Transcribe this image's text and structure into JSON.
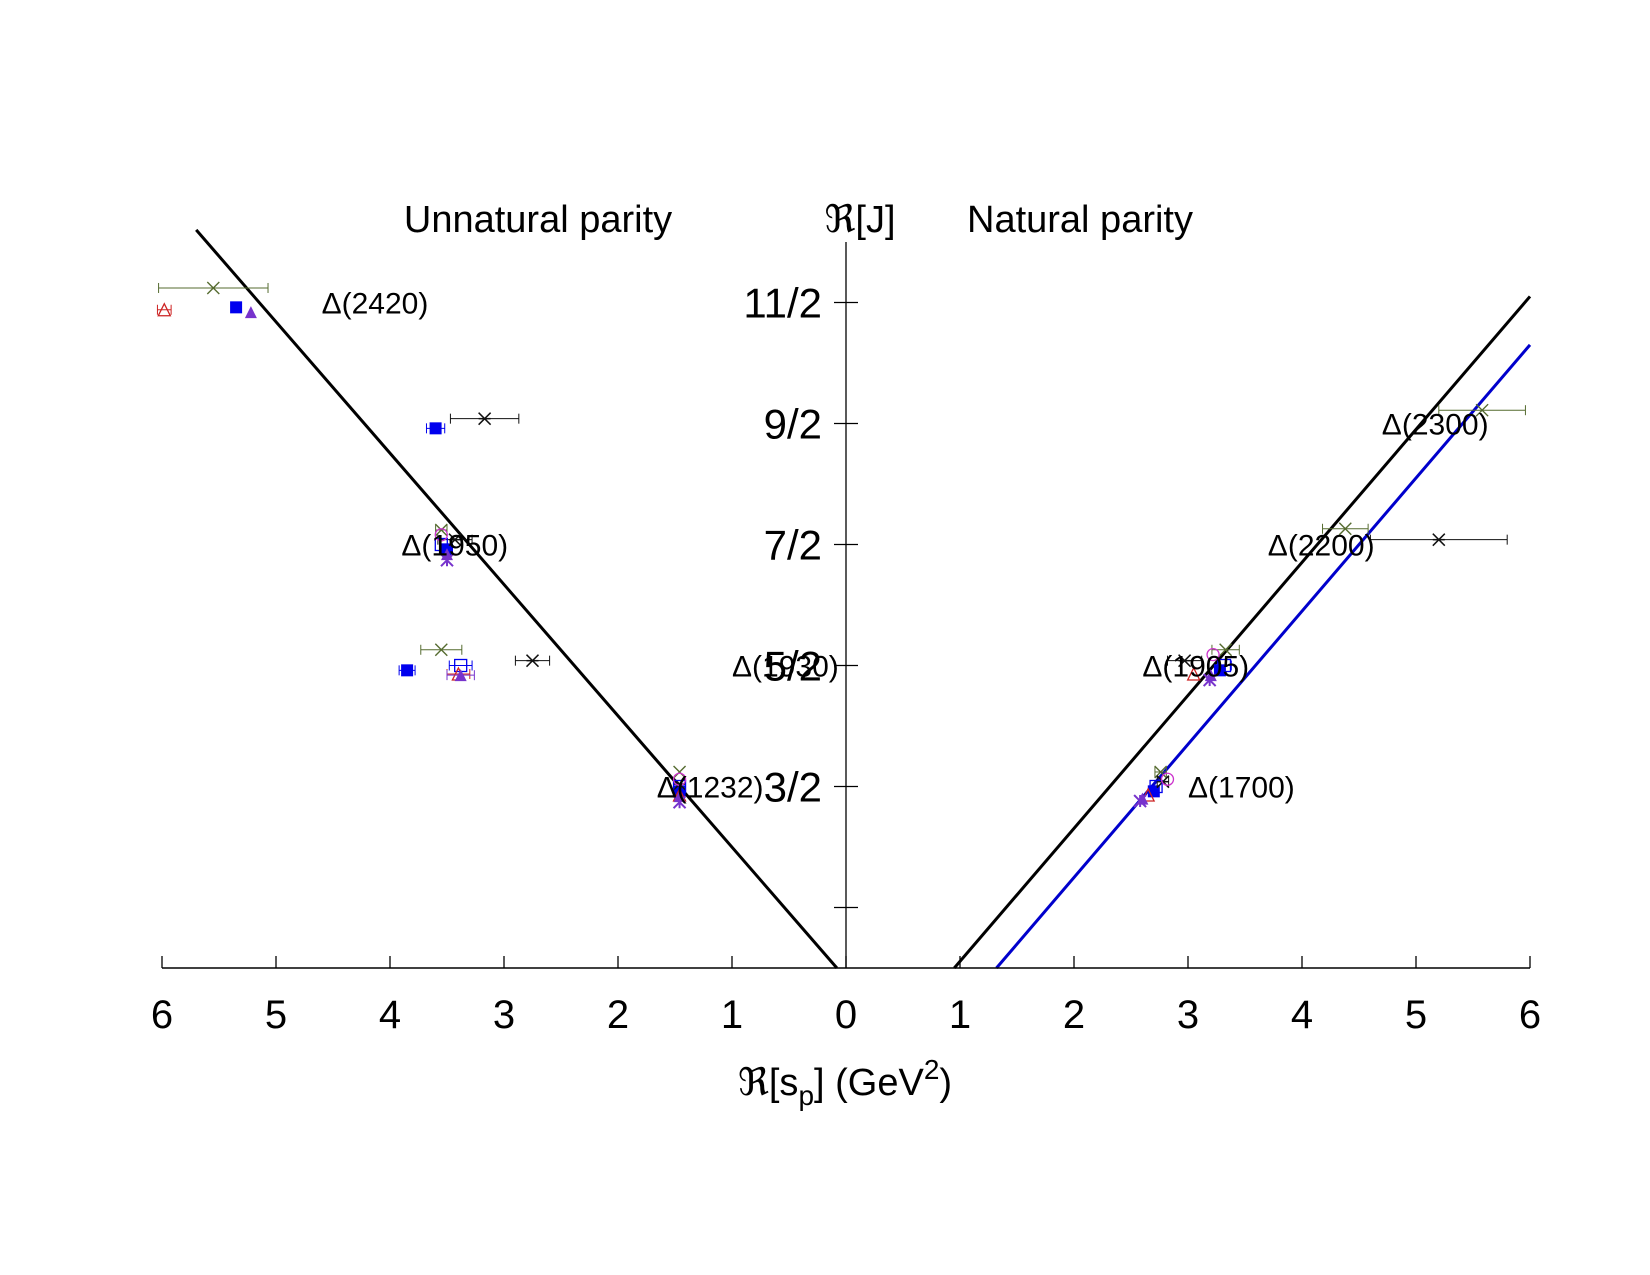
{
  "chart_data": {
    "type": "scatter",
    "xlabel": "ℜ[s_p] (GeV^2)",
    "xlabel_parts": {
      "pre": "ℜ[s",
      "sub": "p",
      "mid": "] (GeV",
      "sup": "2",
      "post": ")"
    },
    "ylabel": "ℜ[J]",
    "left_title": "Unnatural parity",
    "right_title": "Natural parity",
    "x_ticks": [
      "6",
      "5",
      "4",
      "3",
      "2",
      "1",
      "0",
      "1",
      "2",
      "3",
      "4",
      "5",
      "6"
    ],
    "x_range_each_side": [
      0,
      6
    ],
    "y_ticks": [
      {
        "value": 1.5,
        "label": "3/2"
      },
      {
        "value": 2.5,
        "label": "5/2"
      },
      {
        "value": 3.5,
        "label": "7/2"
      },
      {
        "value": 4.5,
        "label": "9/2"
      },
      {
        "value": 5.5,
        "label": "11/2"
      }
    ],
    "y_minor_tick": 0.5,
    "y_range": [
      0,
      6.0
    ],
    "trajectories": [
      {
        "side": "unnatural",
        "color": "#000000",
        "from": [
          0.08,
          0.0
        ],
        "to": [
          5.7,
          6.1
        ]
      },
      {
        "side": "natural",
        "color": "#000000",
        "from": [
          0.95,
          0.0
        ],
        "to": [
          6.0,
          5.55
        ]
      },
      {
        "side": "natural",
        "color": "#0000cc",
        "from": [
          1.32,
          0.0
        ],
        "to": [
          6.0,
          5.15
        ]
      }
    ],
    "resonance_labels": [
      {
        "side": "unnatural",
        "text": "Δ(2420)",
        "x": 4.6,
        "y": 5.5
      },
      {
        "side": "unnatural",
        "text": "Δ(1950)",
        "x": 3.9,
        "y": 3.5
      },
      {
        "side": "unnatural",
        "text": "Δ(1930)",
        "x": 1.0,
        "y": 2.5
      },
      {
        "side": "unnatural",
        "text": "Δ(1232)",
        "x": 1.66,
        "y": 1.5
      },
      {
        "side": "natural",
        "text": "Δ(2300)",
        "x": 4.7,
        "y": 4.5
      },
      {
        "side": "natural",
        "text": "Δ(2200)",
        "x": 3.7,
        "y": 3.5
      },
      {
        "side": "natural",
        "text": "Δ(1905)",
        "x": 2.6,
        "y": 2.5
      },
      {
        "side": "natural",
        "text": "Δ(1700)",
        "x": 3.0,
        "y": 1.5
      }
    ],
    "series": [
      {
        "marker": "filled-square",
        "color": "#0000ee",
        "points": [
          {
            "side": "unnatural",
            "x": 5.35,
            "y": 5.46
          },
          {
            "side": "unnatural",
            "x": 3.6,
            "y": 4.46,
            "xerr": 0.08
          },
          {
            "side": "unnatural",
            "x": 3.5,
            "y": 3.46
          },
          {
            "side": "unnatural",
            "x": 3.85,
            "y": 2.46,
            "xerr": 0.07
          },
          {
            "side": "unnatural",
            "x": 1.46,
            "y": 1.46
          },
          {
            "side": "natural",
            "x": 3.28,
            "y": 2.46
          },
          {
            "side": "natural",
            "x": 2.7,
            "y": 1.46
          }
        ]
      },
      {
        "marker": "cross-x",
        "color": "#556b2f",
        "points": [
          {
            "side": "unnatural",
            "x": 5.55,
            "y": 5.62,
            "xerr": 0.48
          },
          {
            "side": "unnatural",
            "x": 3.55,
            "y": 3.62,
            "xerr": 0.05
          },
          {
            "side": "unnatural",
            "x": 3.55,
            "y": 2.63,
            "xerr": 0.18
          },
          {
            "side": "unnatural",
            "x": 1.46,
            "y": 1.62
          },
          {
            "side": "natural",
            "x": 5.58,
            "y": 4.61,
            "xerr": 0.38
          },
          {
            "side": "natural",
            "x": 4.38,
            "y": 3.63,
            "xerr": 0.2
          },
          {
            "side": "natural",
            "x": 3.33,
            "y": 2.63,
            "xerr": 0.12
          },
          {
            "side": "natural",
            "x": 2.76,
            "y": 1.62,
            "xerr": 0.05
          }
        ]
      },
      {
        "marker": "asterisk",
        "color": "#111111",
        "points": [
          {
            "side": "unnatural",
            "x": 3.17,
            "y": 4.54,
            "xerr": 0.3
          },
          {
            "side": "unnatural",
            "x": 3.43,
            "y": 3.54,
            "xerr": 0.15
          },
          {
            "side": "unnatural",
            "x": 2.75,
            "y": 2.54,
            "xerr": 0.15
          },
          {
            "side": "unnatural",
            "x": 1.46,
            "y": 1.52
          },
          {
            "side": "natural",
            "x": 5.2,
            "y": 3.54,
            "xerr": 0.6
          },
          {
            "side": "natural",
            "x": 2.97,
            "y": 2.54,
            "xerr": 0.15
          },
          {
            "side": "natural",
            "x": 2.78,
            "y": 1.54,
            "xerr": 0.05
          }
        ]
      },
      {
        "marker": "open-square",
        "color": "#0000ee",
        "points": [
          {
            "side": "unnatural",
            "x": 3.55,
            "y": 3.5
          },
          {
            "side": "unnatural",
            "x": 3.38,
            "y": 2.5,
            "xerr": 0.1
          },
          {
            "side": "unnatural",
            "x": 1.46,
            "y": 1.5
          },
          {
            "side": "natural",
            "x": 3.32,
            "y": 2.5,
            "xerr": 0.06
          },
          {
            "side": "natural",
            "x": 2.72,
            "y": 1.5
          }
        ]
      },
      {
        "marker": "open-circle",
        "color": "#cc33cc",
        "points": [
          {
            "side": "unnatural",
            "x": 3.55,
            "y": 3.58
          },
          {
            "side": "unnatural",
            "x": 1.46,
            "y": 1.56
          },
          {
            "side": "natural",
            "x": 3.22,
            "y": 2.59
          },
          {
            "side": "natural",
            "x": 2.82,
            "y": 1.56
          }
        ]
      },
      {
        "marker": "open-triangle",
        "color": "#cc2222",
        "points": [
          {
            "side": "unnatural",
            "x": 5.98,
            "y": 5.44,
            "xerr": 0.06
          },
          {
            "side": "unnatural",
            "x": 3.4,
            "y": 2.43,
            "xerr": 0.1
          },
          {
            "side": "unnatural",
            "x": 1.46,
            "y": 1.43
          },
          {
            "side": "natural",
            "x": 3.05,
            "y": 2.43
          },
          {
            "side": "natural",
            "x": 2.65,
            "y": 1.43
          }
        ]
      },
      {
        "marker": "filled-triangle",
        "color": "#7733cc",
        "points": [
          {
            "side": "unnatural",
            "x": 5.22,
            "y": 5.42
          },
          {
            "side": "unnatural",
            "x": 3.5,
            "y": 3.42
          },
          {
            "side": "unnatural",
            "x": 3.38,
            "y": 2.42,
            "xerr": 0.12
          },
          {
            "side": "unnatural",
            "x": 1.46,
            "y": 1.42
          },
          {
            "side": "natural",
            "x": 3.2,
            "y": 2.42
          },
          {
            "side": "natural",
            "x": 2.6,
            "y": 1.4
          }
        ]
      },
      {
        "marker": "star",
        "color": "#7733cc",
        "points": [
          {
            "side": "unnatural",
            "x": 3.5,
            "y": 3.37
          },
          {
            "side": "unnatural",
            "x": 1.46,
            "y": 1.37
          },
          {
            "side": "natural",
            "x": 3.19,
            "y": 2.38
          },
          {
            "side": "natural",
            "x": 2.58,
            "y": 1.38
          }
        ]
      }
    ]
  }
}
